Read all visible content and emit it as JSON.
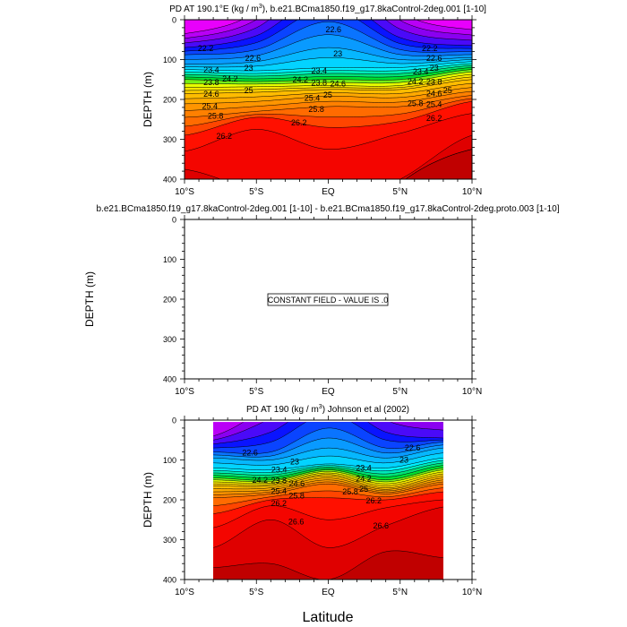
{
  "chart_data": [
    {
      "type": "contour",
      "title": "PD AT 190.1°E (kg / m³), b.e21.BCma1850.f19_g17.8kaControl-2deg.001 [1-10]",
      "title_parts": {
        "pre": "PD AT 190.1°E (kg / m",
        "sup": "3",
        "post": "), b.e21.BCma1850.f19_g17.8kaControl-2deg.001 [1-10]"
      },
      "ylabel": "DEPTH (m)",
      "xlim": [
        -10,
        10
      ],
      "ylim": [
        0,
        400
      ],
      "y_reversed": true,
      "data_lat_range": [
        -10,
        10
      ],
      "profile_lats": [
        -10,
        -5,
        0,
        5,
        10
      ],
      "contour_depths": {
        "21.4": [
          -20,
          -120,
          -300,
          -120,
          -20
        ],
        "21.6": [
          35,
          -20,
          -200,
          -20,
          25
        ],
        "22.2": [
          70,
          40,
          -60,
          45,
          65
        ],
        "22.6": [
          88,
          75,
          5,
          75,
          80
        ],
        "23.0": [
          112,
          105,
          70,
          100,
          95
        ],
        "23.4": [
          125,
          128,
          120,
          120,
          105
        ],
        "24.2": [
          150,
          155,
          150,
          150,
          125
        ],
        "24.6": [
          170,
          168,
          165,
          165,
          137
        ],
        "25.0": [
          185,
          182,
          175,
          175,
          150
        ],
        "25.4": [
          211,
          205,
          192,
          195,
          170
        ],
        "25.8": [
          245,
          230,
          218,
          218,
          190
        ],
        "26.2": [
          290,
          245,
          270,
          255,
          205
        ],
        "26.4": [
          330,
          275,
          325,
          285,
          235
        ],
        "26.6": [
          375,
          430,
          470,
          400,
          290
        ],
        "26.8": [
          600,
          600,
          600,
          410,
          325
        ]
      },
      "contour_labels": [
        [
          -8.6,
          72,
          "22.2"
        ],
        [
          0.3,
          25,
          "22.6"
        ],
        [
          7,
          72,
          "22.2"
        ],
        [
          -5.3,
          97,
          "22.6"
        ],
        [
          -5.6,
          115,
          "23"
        ],
        [
          0.6,
          85,
          "23"
        ],
        [
          7.3,
          97,
          "22.6"
        ],
        [
          -8.2,
          126,
          "23.4"
        ],
        [
          -0.7,
          128,
          "23.4"
        ],
        [
          7.3,
          115,
          "23"
        ],
        [
          -8.2,
          137,
          "23.8"
        ],
        [
          -0.7,
          138,
          "23.8"
        ],
        [
          7.3,
          130,
          "23.4"
        ],
        [
          -8.2,
          148,
          "24.2"
        ],
        [
          -0.7,
          150,
          "24.2"
        ],
        [
          7.3,
          143,
          "23.8"
        ],
        [
          -8.2,
          160,
          "24.6"
        ],
        [
          -0.7,
          161,
          "24.6"
        ],
        [
          7.3,
          155,
          "24.2"
        ],
        [
          -5.6,
          178,
          "25"
        ],
        [
          -0.1,
          175,
          "25"
        ],
        [
          7.3,
          165,
          "24.6"
        ],
        [
          -8.3,
          210,
          "25.4"
        ],
        [
          -1,
          197,
          "25.4"
        ],
        [
          7.3,
          178,
          "25"
        ],
        [
          -7.9,
          242,
          "25.8"
        ],
        [
          -0.9,
          218,
          "25.8"
        ],
        [
          7.3,
          192,
          "25.4"
        ],
        [
          -7.3,
          292,
          "26.2"
        ],
        [
          -2.1,
          258,
          "26.2"
        ],
        [
          7.3,
          210,
          "25.8"
        ],
        [
          7.3,
          247,
          "26.2"
        ]
      ]
    },
    {
      "type": "contour",
      "title": "b.e21.BCma1850.f19_g17.8kaControl-2deg.001 [1-10] - b.e21.BCma1850.f19_g17.8kaControl-2deg.proto.003 [1-10]",
      "ylabel": "DEPTH (m)",
      "xlim": [
        -10,
        10
      ],
      "ylim": [
        0,
        400
      ],
      "y_reversed": true,
      "annotation": "CONSTANT FIELD - VALUE IS .0",
      "value": 0
    },
    {
      "type": "contour",
      "title": "PD AT 190 (kg / m³) Johnson et al (2002)",
      "title_parts": {
        "pre": "PD AT 190 (kg / m",
        "sup": "3",
        "post": ") Johnson et al (2002)"
      },
      "ylabel": "DEPTH (m)",
      "xlabel": "Latitude",
      "xlim": [
        -10,
        10
      ],
      "ylim": [
        0,
        400
      ],
      "y_reversed": true,
      "data_lat_range": [
        -8,
        8
      ],
      "data_depth_range": [
        5,
        400
      ],
      "profile_lats": [
        -8,
        -4,
        0,
        4,
        8
      ],
      "contour_depths": {
        "21.4": [
          -100,
          -200,
          -300,
          -200,
          -60
        ],
        "21.8": [
          40,
          -40,
          -150,
          -30,
          5
        ],
        "22.2": [
          60,
          30,
          -50,
          30,
          45
        ],
        "22.6": [
          80,
          80,
          20,
          70,
          55
        ],
        "23.0": [
          95,
          100,
          70,
          95,
          70
        ],
        "23.4": [
          120,
          125,
          110,
          120,
          95
        ],
        "24.2": [
          145,
          150,
          125,
          150,
          120
        ],
        "25.0": [
          165,
          165,
          140,
          170,
          140
        ],
        "25.8": [
          195,
          185,
          160,
          185,
          160
        ],
        "26.2": [
          235,
          200,
          195,
          200,
          180
        ],
        "26.4": [
          270,
          215,
          250,
          220,
          200
        ],
        "26.6": [
          320,
          250,
          320,
          265,
          218
        ],
        "26.8": [
          370,
          360,
          400,
          330,
          345
        ],
        "27.0": [
          700,
          700,
          700,
          700,
          700
        ]
      },
      "contour_labels": [
        [
          -5.5,
          82,
          "22.6"
        ],
        [
          -2.4,
          105,
          "23"
        ],
        [
          5.8,
          70,
          "22.6"
        ],
        [
          5.2,
          100,
          "23"
        ],
        [
          -3.1,
          125,
          "23.4"
        ],
        [
          -3.5,
          138,
          "23.8"
        ],
        [
          -3.5,
          150,
          "24.2"
        ],
        [
          -3,
          160,
          "24.6"
        ],
        [
          -3.5,
          172,
          "25.4"
        ],
        [
          -3.2,
          183,
          "25.8"
        ],
        [
          -3.5,
          202,
          "26.2"
        ],
        [
          2.4,
          120,
          "23.4"
        ],
        [
          2.4,
          140,
          "24.2"
        ],
        [
          2.4,
          160,
          "25"
        ],
        [
          2.4,
          180,
          "25.8"
        ],
        [
          3.1,
          195,
          "26.2"
        ],
        [
          -2.3,
          255,
          "26.6"
        ],
        [
          3.6,
          265,
          "26.6"
        ]
      ]
    }
  ],
  "shared": {
    "levels": {
      "min": 21.4,
      "max": 27.0,
      "step": 0.2
    },
    "x_ticks": [
      {
        "value": -10,
        "label": "10°S"
      },
      {
        "value": -5,
        "label": "5°S"
      },
      {
        "value": 0,
        "label": "EQ"
      },
      {
        "value": 5,
        "label": "5°N"
      },
      {
        "value": 10,
        "label": "10°N"
      }
    ],
    "y_ticks": [
      0,
      100,
      200,
      300,
      400
    ],
    "colorscale": [
      [
        21.4,
        "#ff00ff"
      ],
      [
        21.9,
        "#8a00f0"
      ],
      [
        22.3,
        "#0a14ff"
      ],
      [
        22.8,
        "#0a8cff"
      ],
      [
        23.5,
        "#00f0ff"
      ],
      [
        24.1,
        "#00dd30"
      ],
      [
        24.5,
        "#e8ff00"
      ],
      [
        24.8,
        "#ffd800"
      ],
      [
        25.4,
        "#ffa000"
      ],
      [
        26.0,
        "#ff6000"
      ],
      [
        26.3,
        "#ff1000"
      ],
      [
        26.6,
        "#ee0000"
      ],
      [
        26.9,
        "#c00000"
      ]
    ]
  }
}
